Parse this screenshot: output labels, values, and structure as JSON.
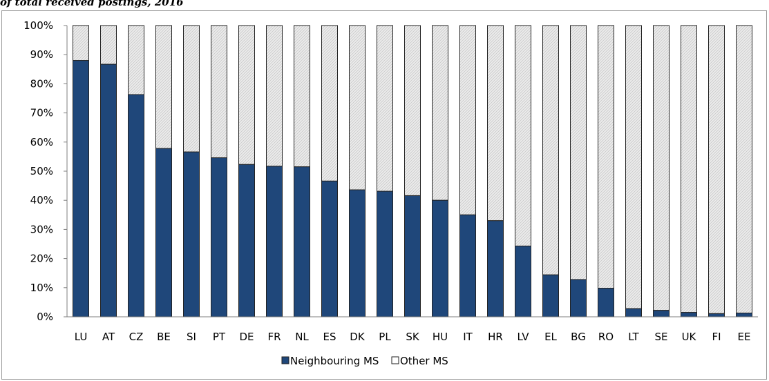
{
  "title_fragment": "of total received postings, 2016",
  "colors": {
    "neighbouring": "#1f477a",
    "other_fill": "#ebebeb",
    "other_stroke": "#222222",
    "axis": "#7f7f7f"
  },
  "chart_data": {
    "type": "bar",
    "stacked": true,
    "percent_stacked": true,
    "categories": [
      "LU",
      "AT",
      "CZ",
      "BE",
      "SI",
      "PT",
      "DE",
      "FR",
      "NL",
      "ES",
      "DK",
      "PL",
      "SK",
      "HU",
      "IT",
      "HR",
      "LV",
      "EL",
      "BG",
      "RO",
      "LT",
      "SE",
      "UK",
      "FI",
      "EE"
    ],
    "series": [
      {
        "name": "Neighbouring MS",
        "values": [
          88,
          86.7,
          76.3,
          57.8,
          56.6,
          54.6,
          52.3,
          51.7,
          51.5,
          46.6,
          43.6,
          43.1,
          41.6,
          40,
          35,
          33,
          24.3,
          14.4,
          12.8,
          9.8,
          2.8,
          2.2,
          1.5,
          1.1,
          1.3
        ]
      },
      {
        "name": "Other MS",
        "values": [
          12,
          13.3,
          23.7,
          42.2,
          43.4,
          45.4,
          47.7,
          48.3,
          48.5,
          53.4,
          56.4,
          56.9,
          58.4,
          60,
          65,
          67,
          75.7,
          85.6,
          87.2,
          90.2,
          97.2,
          97.8,
          98.5,
          98.9,
          98.7
        ]
      }
    ],
    "y_ticks": [
      "0%",
      "10%",
      "20%",
      "30%",
      "40%",
      "50%",
      "60%",
      "70%",
      "80%",
      "90%",
      "100%"
    ],
    "ylim": [
      0,
      100
    ],
    "grid": false,
    "legend_position": "bottom"
  }
}
